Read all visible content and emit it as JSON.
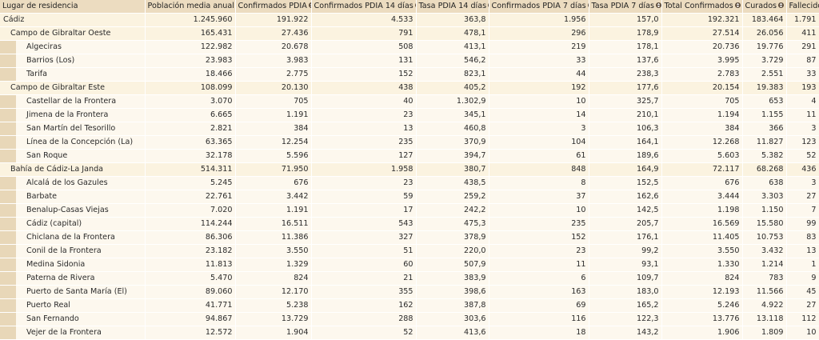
{
  "headers": [
    {
      "label": "Lugar de residencia",
      "sortable": false
    },
    {
      "label": "Población media anual",
      "sortable": true
    },
    {
      "label": "Confirmados PDIA",
      "sortable": true
    },
    {
      "label": "Confirmados PDIA 14 días",
      "sortable": true
    },
    {
      "label": "Tasa PDIA 14 días",
      "sortable": true
    },
    {
      "label": "Confirmados PDIA 7 días",
      "sortable": true
    },
    {
      "label": "Tasa PDIA 7 días",
      "sortable": true
    },
    {
      "label": "Total Confirmados",
      "sortable": true
    },
    {
      "label": "Curados",
      "sortable": true
    },
    {
      "label": "Fallecidos",
      "sortable": true
    }
  ],
  "rows": [
    {
      "level": 0,
      "cells": [
        "Cádiz",
        "1.245.960",
        "191.922",
        "4.533",
        "363,8",
        "1.956",
        "157,0",
        "192.321",
        "183.464",
        "1.791"
      ]
    },
    {
      "level": 1,
      "cells": [
        "Campo de Gibraltar Oeste",
        "165.431",
        "27.436",
        "791",
        "478,1",
        "296",
        "178,9",
        "27.514",
        "26.056",
        "411"
      ]
    },
    {
      "level": 2,
      "cells": [
        "Algeciras",
        "122.982",
        "20.678",
        "508",
        "413,1",
        "219",
        "178,1",
        "20.736",
        "19.776",
        "291"
      ]
    },
    {
      "level": 2,
      "cells": [
        "Barrios (Los)",
        "23.983",
        "3.983",
        "131",
        "546,2",
        "33",
        "137,6",
        "3.995",
        "3.729",
        "87"
      ]
    },
    {
      "level": 2,
      "cells": [
        "Tarifa",
        "18.466",
        "2.775",
        "152",
        "823,1",
        "44",
        "238,3",
        "2.783",
        "2.551",
        "33"
      ]
    },
    {
      "level": 1,
      "cells": [
        "Campo de Gibraltar Este",
        "108.099",
        "20.130",
        "438",
        "405,2",
        "192",
        "177,6",
        "20.154",
        "19.383",
        "193"
      ]
    },
    {
      "level": 2,
      "cells": [
        "Castellar de la Frontera",
        "3.070",
        "705",
        "40",
        "1.302,9",
        "10",
        "325,7",
        "705",
        "653",
        "4"
      ]
    },
    {
      "level": 2,
      "cells": [
        "Jimena de la Frontera",
        "6.665",
        "1.191",
        "23",
        "345,1",
        "14",
        "210,1",
        "1.194",
        "1.155",
        "11"
      ]
    },
    {
      "level": 2,
      "cells": [
        "San Martín del Tesorillo",
        "2.821",
        "384",
        "13",
        "460,8",
        "3",
        "106,3",
        "384",
        "366",
        "3"
      ]
    },
    {
      "level": 2,
      "cells": [
        "Línea de la Concepción (La)",
        "63.365",
        "12.254",
        "235",
        "370,9",
        "104",
        "164,1",
        "12.268",
        "11.827",
        "123"
      ]
    },
    {
      "level": 2,
      "cells": [
        "San Roque",
        "32.178",
        "5.596",
        "127",
        "394,7",
        "61",
        "189,6",
        "5.603",
        "5.382",
        "52"
      ]
    },
    {
      "level": 1,
      "cells": [
        "Bahía de Cádiz-La Janda",
        "514.311",
        "71.950",
        "1.958",
        "380,7",
        "848",
        "164,9",
        "72.117",
        "68.268",
        "436"
      ]
    },
    {
      "level": 2,
      "cells": [
        "Alcalá de los Gazules",
        "5.245",
        "676",
        "23",
        "438,5",
        "8",
        "152,5",
        "676",
        "638",
        "3"
      ]
    },
    {
      "level": 2,
      "cells": [
        "Barbate",
        "22.761",
        "3.442",
        "59",
        "259,2",
        "37",
        "162,6",
        "3.444",
        "3.303",
        "27"
      ]
    },
    {
      "level": 2,
      "cells": [
        "Benalup-Casas Viejas",
        "7.020",
        "1.191",
        "17",
        "242,2",
        "10",
        "142,5",
        "1.198",
        "1.150",
        "7"
      ]
    },
    {
      "level": 2,
      "cells": [
        "Cádiz (capital)",
        "114.244",
        "16.511",
        "543",
        "475,3",
        "235",
        "205,7",
        "16.569",
        "15.580",
        "99"
      ]
    },
    {
      "level": 2,
      "cells": [
        "Chiclana de la Frontera",
        "86.306",
        "11.386",
        "327",
        "378,9",
        "152",
        "176,1",
        "11.405",
        "10.753",
        "83"
      ]
    },
    {
      "level": 2,
      "cells": [
        "Conil de la Frontera",
        "23.182",
        "3.550",
        "51",
        "220,0",
        "23",
        "99,2",
        "3.550",
        "3.432",
        "13"
      ]
    },
    {
      "level": 2,
      "cells": [
        "Medina Sidonia",
        "11.813",
        "1.329",
        "60",
        "507,9",
        "11",
        "93,1",
        "1.330",
        "1.214",
        "1"
      ]
    },
    {
      "level": 2,
      "cells": [
        "Paterna de Rivera",
        "5.470",
        "824",
        "21",
        "383,9",
        "6",
        "109,7",
        "824",
        "783",
        "9"
      ]
    },
    {
      "level": 2,
      "cells": [
        "Puerto de Santa María (El)",
        "89.060",
        "12.170",
        "355",
        "398,6",
        "163",
        "183,0",
        "12.193",
        "11.566",
        "45"
      ]
    },
    {
      "level": 2,
      "cells": [
        "Puerto Real",
        "41.771",
        "5.238",
        "162",
        "387,8",
        "69",
        "165,2",
        "5.246",
        "4.922",
        "27"
      ]
    },
    {
      "level": 2,
      "cells": [
        "San Fernando",
        "94.867",
        "13.729",
        "288",
        "303,6",
        "116",
        "122,3",
        "13.776",
        "13.118",
        "112"
      ]
    },
    {
      "level": 2,
      "cells": [
        "Vejer de la Frontera",
        "12.572",
        "1.904",
        "52",
        "413,6",
        "18",
        "143,2",
        "1.906",
        "1.809",
        "10"
      ]
    }
  ]
}
